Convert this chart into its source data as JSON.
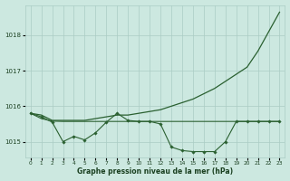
{
  "xlabel": "Graphe pression niveau de la mer (hPa)",
  "x": [
    0,
    1,
    2,
    3,
    4,
    5,
    6,
    7,
    8,
    9,
    10,
    11,
    12,
    13,
    14,
    15,
    16,
    17,
    18,
    19,
    20,
    21,
    22,
    23
  ],
  "line_steep": [
    1015.8,
    1015.75,
    1015.6,
    1015.6,
    1015.6,
    1015.6,
    1015.65,
    1015.7,
    1015.75,
    1015.75,
    1015.8,
    1015.85,
    1015.9,
    1016.0,
    1016.1,
    1016.2,
    1016.35,
    1016.5,
    1016.7,
    1016.9,
    1017.1,
    1017.55,
    1018.1,
    1018.65
  ],
  "line_flat": [
    1015.8,
    1015.65,
    1015.58,
    1015.57,
    1015.57,
    1015.57,
    1015.57,
    1015.57,
    1015.57,
    1015.57,
    1015.57,
    1015.57,
    1015.57,
    1015.57,
    1015.57,
    1015.57,
    1015.57,
    1015.57,
    1015.57,
    1015.57,
    1015.57,
    1015.57,
    1015.57,
    1015.57
  ],
  "line_wavy": [
    1015.8,
    1015.7,
    1015.55,
    1015.0,
    1015.15,
    1015.05,
    1015.25,
    1015.55,
    1015.8,
    1015.6,
    1015.57,
    1015.57,
    1015.5,
    1014.85,
    1014.75,
    1014.72,
    1014.72,
    1014.72,
    1015.0,
    1015.57,
    1015.57,
    1015.57,
    1015.57,
    1015.57
  ],
  "line_color": "#2a6030",
  "bg_color": "#cce8e0",
  "grid_color": "#aaccC4",
  "text_color": "#1a4020",
  "ylim_min": 1014.55,
  "ylim_max": 1018.85,
  "yticks": [
    1015,
    1016,
    1017,
    1018
  ]
}
